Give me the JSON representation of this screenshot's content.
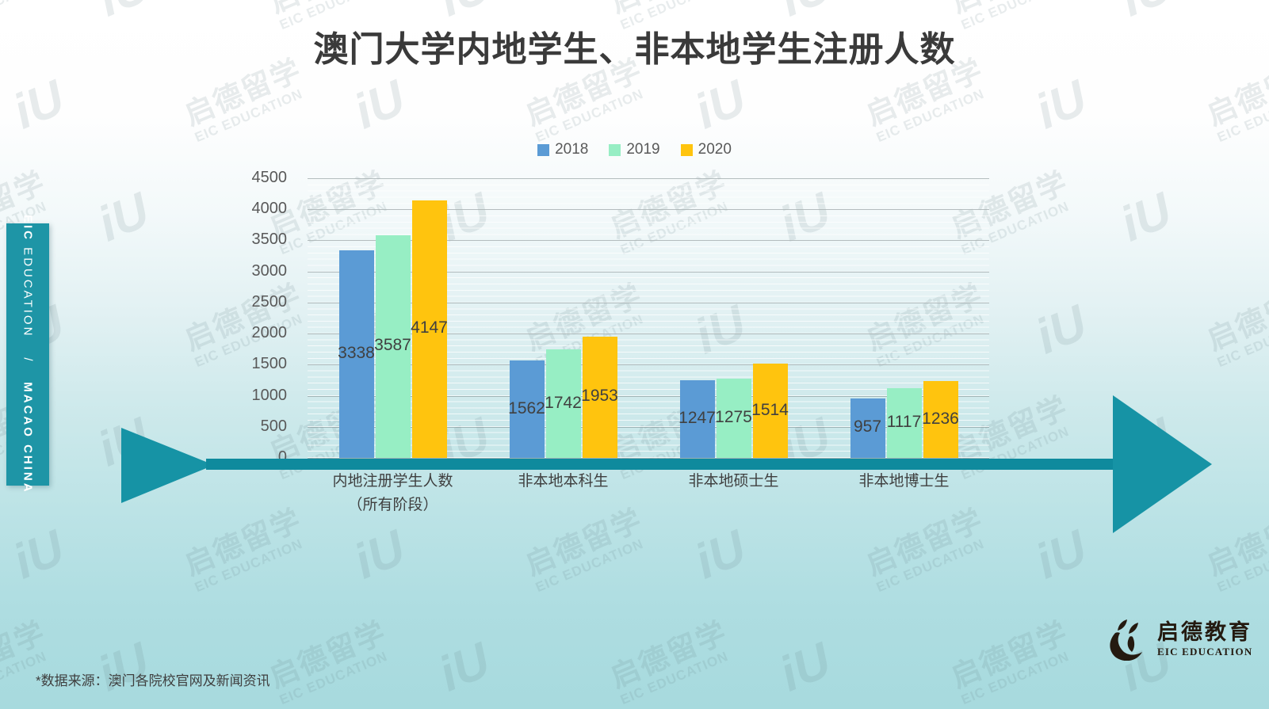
{
  "page": {
    "title": "澳门大学内地学生、非本地学生注册人数"
  },
  "chart_data": {
    "type": "bar",
    "title": "澳门大学内地学生、非本地学生注册人数",
    "categories": [
      {
        "label": "内地注册学生人数",
        "sub": "（所有阶段）"
      },
      {
        "label": "非本地本科生",
        "sub": ""
      },
      {
        "label": "非本地硕士生",
        "sub": ""
      },
      {
        "label": "非本地博士生",
        "sub": ""
      }
    ],
    "series": [
      {
        "name": "2018",
        "color": "#5B9BD5",
        "values": [
          3338,
          1562,
          1247,
          957
        ]
      },
      {
        "name": "2019",
        "color": "#97EEC4",
        "values": [
          3587,
          1742,
          1275,
          1117
        ]
      },
      {
        "name": "2020",
        "color": "#FFC40E",
        "values": [
          4147,
          1953,
          1514,
          1236
        ]
      }
    ],
    "ylim": [
      0,
      4500
    ],
    "yticks": [
      0,
      500,
      1000,
      1500,
      2000,
      2500,
      3000,
      3500,
      4000,
      4500
    ],
    "grid": "horizontal major every 500, minor every 100",
    "legend_position": "top",
    "value_labels": "centered inside bars"
  },
  "sidebar": {
    "brand_bold": "EIC",
    "brand_rest": " EDUCATION",
    "separator": "/",
    "region": "MACAO CHINA"
  },
  "watermark": {
    "line1": "启德留学",
    "line2": "EIC EDUCATION",
    "glyph": "iU"
  },
  "footer": {
    "source_note": "*数据来源：澳门各院校官网及新闻资讯"
  },
  "logo": {
    "cn": "启德教育",
    "en": "EIC EDUCATION"
  },
  "colors": {
    "accent_teal": "#1E95A6",
    "arrow_shaft": "#0F8A9D",
    "arrow_head": "#1693A5",
    "title_text": "#3A3A3A",
    "axis_text": "#595959",
    "value_text": "#404040"
  }
}
